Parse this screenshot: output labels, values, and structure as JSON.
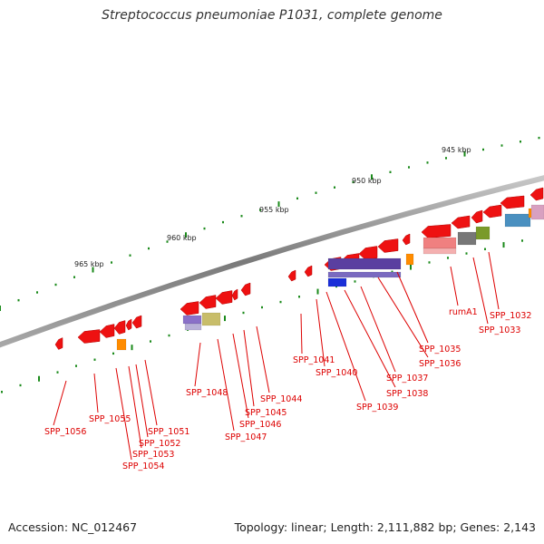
{
  "title": "Streptococcus pneumoniae P1031, complete genome",
  "footer": {
    "accession": "Accession: NC_012467",
    "topology": "Topology: linear; Length: 2,111,882 bp; Genes: 2,143"
  },
  "ruler": {
    "labels": [
      "945 kbp",
      "950 kbp",
      "955 kbp",
      "960 kbp",
      "965 kbp"
    ]
  },
  "genes": [
    "SPP_1032",
    "SPP_1033",
    "rumA1",
    "SPP_1035",
    "SPP_1036",
    "SPP_1037",
    "SPP_1038",
    "SPP_1039",
    "SPP_1040",
    "SPP_1041",
    "SPP_1044",
    "SPP_1045",
    "SPP_1046",
    "SPP_1047",
    "SPP_1048",
    "SPP_1051",
    "SPP_1052",
    "SPP_1053",
    "SPP_1054",
    "SPP_1055",
    "SPP_1056"
  ],
  "colors": {
    "gene": "#ee1111",
    "label": "#dd0000",
    "backbone": "#808080",
    "tick": "#1a8a1a",
    "orange": "#ff8c00",
    "purple": "#5a3fa0",
    "blue": "#1a2fd8",
    "khaki": "#c8bd6a",
    "pink": "#f08080",
    "gray": "#777777",
    "olive": "#7a9a2a",
    "steel": "#4a90c0"
  }
}
